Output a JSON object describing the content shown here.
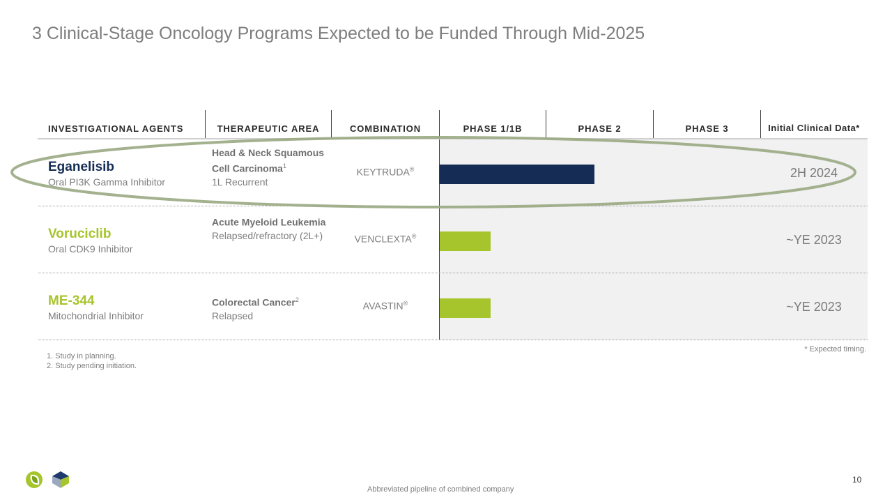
{
  "title": "3 Clinical-Stage Oncology Programs Expected to be Funded Through Mid-2025",
  "headers": {
    "agents": "INVESTIGATIONAL AGENTS",
    "therapeutic": "THERAPEUTIC AREA",
    "combination": "COMBINATION",
    "phase1": "PHASE 1/1B",
    "phase2": "PHASE 2",
    "phase3": "PHASE 3",
    "initial": "Initial Clinical Data*"
  },
  "rows": [
    {
      "agent": "Eganelisib",
      "agent_desc": "Oral PI3K Gamma Inhibitor",
      "ta_bold": "Head & Neck Squamous Cell Carcinoma",
      "ta_sup": "1",
      "ta_sub": "1L Recurrent",
      "combination": "KEYTRUDA",
      "reg": "®",
      "data": "2H 2024",
      "progress_phase": 1.45,
      "color": "#152d54"
    },
    {
      "agent": "Voruciclib",
      "agent_desc": "Oral CDK9 Inhibitor",
      "ta_bold": "Acute Myeloid Leukemia",
      "ta_sup": "",
      "ta_sub": "Relapsed/refractory (2L+)",
      "combination": "VENCLEXTA",
      "reg": "®",
      "data": "~YE 2023",
      "progress_phase": 0.48,
      "color": "#a6c42c"
    },
    {
      "agent": "ME-344",
      "agent_desc": "Mitochondrial Inhibitor",
      "ta_bold": "Colorectal Cancer",
      "ta_sup": "2",
      "ta_sub": "Relapsed",
      "combination": "AVASTIN",
      "reg": "®",
      "data": "~YE 2023",
      "progress_phase": 0.48,
      "color": "#a6c42c"
    }
  ],
  "footnotes": [
    "1.  Study in planning.",
    "2.  Study pending initiation."
  ],
  "expected_note": "* Expected timing.",
  "source_note": "Abbreviated pipeline of combined company",
  "page_number": "10",
  "colors": {
    "highlight": "#9aa883",
    "navy": "#152d54",
    "lime": "#a6c42c",
    "panel": "#f1f1f1"
  }
}
